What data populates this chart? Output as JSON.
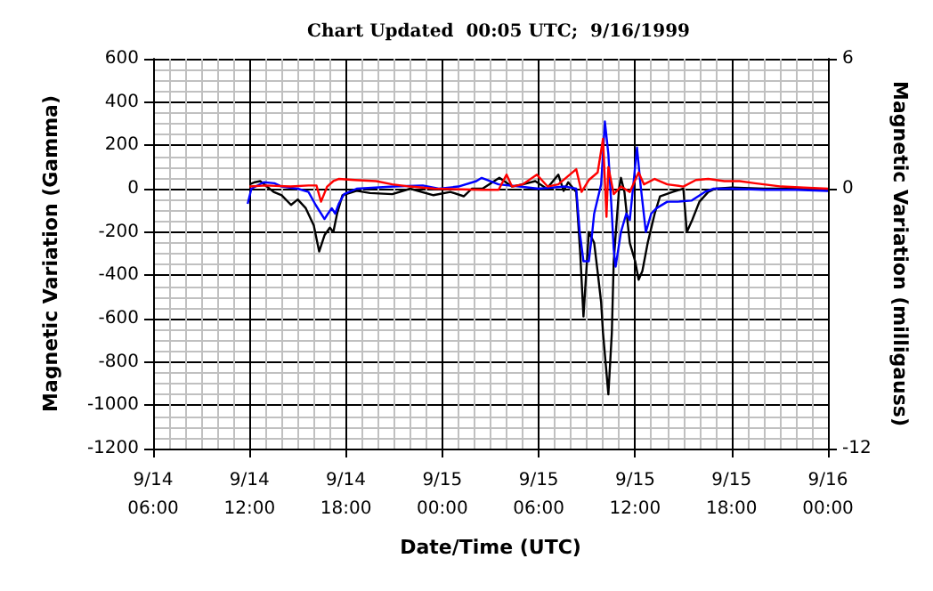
{
  "chart_data": {
    "type": "line",
    "title": "Chart Updated  00:05 UTC;  9/16/1999",
    "xlabel": "Date/Time (UTC)",
    "ylabel": "Magnetic Variation (Gamma)",
    "y2label": "Magnetic Variation (milligauss)",
    "xlim": [
      "1999-09-14T06:00",
      "1999-09-16T00:00"
    ],
    "xticks": [
      {
        "value": "1999-09-14T06:00",
        "label": "9/14\n06:00"
      },
      {
        "value": "1999-09-14T12:00",
        "label": "9/14\n12:00"
      },
      {
        "value": "1999-09-14T18:00",
        "label": "9/14\n18:00"
      },
      {
        "value": "1999-09-15T00:00",
        "label": "9/15\n00:00"
      },
      {
        "value": "1999-09-15T06:00",
        "label": "9/15\n06:00"
      },
      {
        "value": "1999-09-15T12:00",
        "label": "9/15\n12:00"
      },
      {
        "value": "1999-09-15T18:00",
        "label": "9/15\n18:00"
      },
      {
        "value": "1999-09-16T00:00",
        "label": "9/16\n00:00"
      }
    ],
    "ylim": [
      -1200,
      600
    ],
    "yticks": [
      -1200,
      -1000,
      -800,
      -600,
      -400,
      -200,
      0,
      200,
      400,
      600
    ],
    "y2lim": [
      -12,
      6
    ],
    "y2ticks": [
      -12,
      0,
      6
    ],
    "grid": true,
    "series": [
      {
        "color": "#000000",
        "x": [
          "1999-09-14T12:00",
          "1999-09-14T12:20",
          "1999-09-14T12:40",
          "1999-09-14T13:30",
          "1999-09-14T14:00",
          "1999-09-14T14:35",
          "1999-09-14T15:00",
          "1999-09-14T15:30",
          "1999-09-14T16:00",
          "1999-09-14T16:20",
          "1999-09-14T16:40",
          "1999-09-14T17:00",
          "1999-09-14T17:13",
          "1999-09-14T17:27",
          "1999-09-14T17:47",
          "1999-09-14T18:40",
          "1999-09-14T19:30",
          "1999-09-14T20:53",
          "1999-09-14T22:00",
          "1999-09-14T23:27",
          "1999-09-15T00:30",
          "1999-09-15T01:20",
          "1999-09-15T01:50",
          "1999-09-15T02:30",
          "1999-09-15T03:33",
          "1999-09-15T04:20",
          "1999-09-15T05:00",
          "1999-09-15T05:47",
          "1999-09-15T06:30",
          "1999-09-15T07:13",
          "1999-09-15T07:33",
          "1999-09-15T07:50",
          "1999-09-15T08:20",
          "1999-09-15T08:35",
          "1999-09-15T08:47",
          "1999-09-15T09:07",
          "1999-09-15T09:27",
          "1999-09-15T09:40",
          "1999-09-15T09:53",
          "1999-09-15T10:00",
          "1999-09-15T10:20",
          "1999-09-15T10:33",
          "1999-09-15T10:40",
          "1999-09-15T11:00",
          "1999-09-15T11:07",
          "1999-09-15T11:20",
          "1999-09-15T11:40",
          "1999-09-15T12:00",
          "1999-09-15T12:13",
          "1999-09-15T12:27",
          "1999-09-15T12:47",
          "1999-09-15T13:13",
          "1999-09-15T13:33",
          "1999-09-15T14:20",
          "1999-09-15T15:00",
          "1999-09-15T15:13",
          "1999-09-15T15:33",
          "1999-09-15T16:00",
          "1999-09-15T16:33",
          "1999-09-15T17:00",
          "1999-09-15T18:00",
          "1999-09-15T20:00",
          "1999-09-15T22:00",
          "1999-09-16T00:00"
        ],
        "values": [
          20,
          30,
          35,
          -15,
          -30,
          -75,
          -50,
          -90,
          -170,
          -290,
          -215,
          -180,
          -200,
          -115,
          -30,
          -10,
          -20,
          -25,
          0,
          -30,
          -15,
          -35,
          0,
          0,
          50,
          10,
          20,
          35,
          0,
          65,
          -10,
          30,
          -15,
          -300,
          -590,
          -200,
          -250,
          -385,
          -525,
          -665,
          -950,
          -665,
          -335,
          0,
          50,
          -15,
          -250,
          -335,
          -420,
          -380,
          -250,
          -115,
          -35,
          -15,
          0,
          -200,
          -145,
          -60,
          -15,
          0,
          5,
          0,
          0,
          -5
        ]
      },
      {
        "color": "#0000ff",
        "x": [
          "1999-09-14T11:53",
          "1999-09-14T12:07",
          "1999-09-14T12:53",
          "1999-09-14T13:33",
          "1999-09-14T14:00",
          "1999-09-14T15:00",
          "1999-09-14T15:40",
          "1999-09-14T16:07",
          "1999-09-14T16:40",
          "1999-09-14T16:53",
          "1999-09-14T17:07",
          "1999-09-14T17:20",
          "1999-09-14T17:33",
          "1999-09-14T17:53",
          "1999-09-14T18:40",
          "1999-09-14T21:00",
          "1999-09-14T22:47",
          "1999-09-14T23:47",
          "1999-09-15T01:00",
          "1999-09-15T02:07",
          "1999-09-15T02:27",
          "1999-09-15T03:30",
          "1999-09-15T04:47",
          "1999-09-15T06:00",
          "1999-09-15T07:40",
          "1999-09-15T08:20",
          "1999-09-15T08:33",
          "1999-09-15T08:47",
          "1999-09-15T09:07",
          "1999-09-15T09:20",
          "1999-09-15T09:27",
          "1999-09-15T09:53",
          "1999-09-15T10:00",
          "1999-09-15T10:07",
          "1999-09-15T10:20",
          "1999-09-15T10:33",
          "1999-09-15T10:40",
          "1999-09-15T10:47",
          "1999-09-15T11:07",
          "1999-09-15T11:27",
          "1999-09-15T11:40",
          "1999-09-15T12:07",
          "1999-09-15T12:20",
          "1999-09-15T12:40",
          "1999-09-15T13:00",
          "1999-09-15T13:20",
          "1999-09-15T14:00",
          "1999-09-15T14:40",
          "1999-09-15T15:30",
          "1999-09-15T16:20",
          "1999-09-15T16:53",
          "1999-09-15T18:00",
          "1999-09-15T20:00",
          "1999-09-15T22:00",
          "1999-09-16T00:00"
        ],
        "values": [
          -70,
          0,
          30,
          25,
          10,
          0,
          -15,
          -75,
          -140,
          -115,
          -90,
          -115,
          -70,
          -25,
          0,
          10,
          15,
          0,
          10,
          35,
          50,
          20,
          10,
          0,
          10,
          0,
          -200,
          -335,
          -335,
          -200,
          -115,
          20,
          160,
          310,
          160,
          -115,
          -280,
          -360,
          -200,
          -115,
          -145,
          190,
          20,
          -200,
          -115,
          -90,
          -60,
          -60,
          -55,
          -15,
          0,
          0,
          -5,
          -5,
          -10
        ]
      },
      {
        "color": "#ff0000",
        "x": [
          "1999-09-14T12:00",
          "1999-09-14T13:00",
          "1999-09-14T14:33",
          "1999-09-14T15:40",
          "1999-09-14T16:10",
          "1999-09-14T16:27",
          "1999-09-14T16:50",
          "1999-09-14T17:13",
          "1999-09-14T17:33",
          "1999-09-14T18:33",
          "1999-09-14T19:53",
          "1999-09-14T20:53",
          "1999-09-14T22:00",
          "1999-09-14T23:30",
          "1999-09-15T02:27",
          "1999-09-15T03:30",
          "1999-09-15T04:00",
          "1999-09-15T04:20",
          "1999-09-15T05:00",
          "1999-09-15T05:53",
          "1999-09-15T06:33",
          "1999-09-15T07:13",
          "1999-09-15T08:20",
          "1999-09-15T08:40",
          "1999-09-15T09:07",
          "1999-09-15T09:40",
          "1999-09-15T10:00",
          "1999-09-15T10:13",
          "1999-09-15T10:20",
          "1999-09-15T10:40",
          "1999-09-15T11:07",
          "1999-09-15T11:40",
          "1999-09-15T12:13",
          "1999-09-15T12:33",
          "1999-09-15T13:13",
          "1999-09-15T14:00",
          "1999-09-15T15:00",
          "1999-09-15T15:47",
          "1999-09-15T16:33",
          "1999-09-15T17:33",
          "1999-09-15T18:30",
          "1999-09-15T19:27",
          "1999-09-15T21:07",
          "1999-09-15T22:30",
          "1999-09-16T00:00"
        ],
        "values": [
          10,
          15,
          10,
          15,
          15,
          -60,
          10,
          35,
          45,
          40,
          35,
          20,
          10,
          0,
          -5,
          -5,
          65,
          10,
          20,
          65,
          10,
          20,
          90,
          -15,
          40,
          75,
          230,
          -130,
          100,
          -25,
          10,
          -15,
          75,
          20,
          45,
          20,
          10,
          40,
          45,
          35,
          35,
          25,
          10,
          5,
          0
        ]
      }
    ]
  }
}
